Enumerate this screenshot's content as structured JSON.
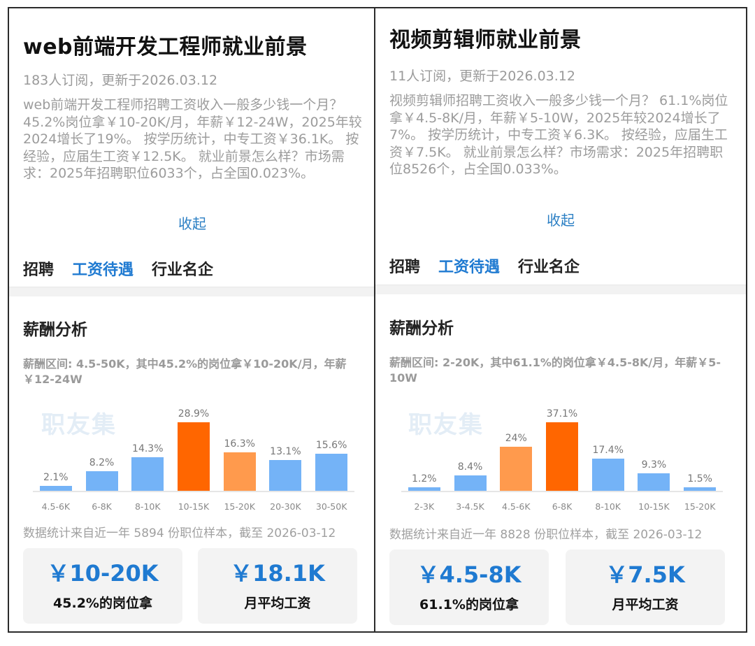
{
  "panels": [
    {
      "title": "web前端开发工程师就业前景",
      "meta": "183人订阅，更新于2026.03.12",
      "description": "web前端开发工程师招聘工资收入一般多少钱一个月？ 45.2%岗位拿￥10-20K/月，年薪￥12-24W，2025年较2024增长了19%。 按学历统计，中专工资￥36.1K。 按经验，应届生工资￥12.5K。 就业前景怎么样？市场需求：2025年招聘职位6033个，占全国0.023%。",
      "collapse_label": "收起",
      "tabs": [
        {
          "label": "招聘",
          "active": false
        },
        {
          "label": "工资待遇",
          "active": true
        },
        {
          "label": "行业名企",
          "active": false
        }
      ],
      "section_title": "薪酬分析",
      "range_text": "薪酬区间: 4.5-50K，其中45.2%的岗位拿￥10-20K/月，年薪￥12-24W",
      "watermark": "职友集",
      "note": "数据统计来自近一年 5894 份职位样本，截至 2026-03-12",
      "cards": [
        {
          "value": "￥10-20K",
          "label": "45.2%的岗位拿"
        },
        {
          "value": "￥18.1K",
          "label": "月平均工资"
        }
      ]
    },
    {
      "title": "视频剪辑师就业前景",
      "meta": "11人订阅，更新于2026.03.12",
      "description": "视频剪辑师招聘工资收入一般多少钱一个月？ 61.1%岗位拿￥4.5-8K/月，年薪￥5-10W，2025年较2024增长了7%。 按学历统计，中专工资￥6.3K。 按经验，应届生工资￥7.5K。 就业前景怎么样？市场需求：2025年招聘职位8526个，占全国0.033%。",
      "collapse_label": "收起",
      "tabs": [
        {
          "label": "招聘",
          "active": false
        },
        {
          "label": "工资待遇",
          "active": true
        },
        {
          "label": "行业名企",
          "active": false
        }
      ],
      "section_title": "薪酬分析",
      "range_text": "薪酬区间: 2-20K，其中61.1%的岗位拿￥4.5-8K/月，年薪￥5-10W",
      "watermark": "职友集",
      "note": "数据统计来自近一年 8828 份职位样本，截至 2026-03-12",
      "cards": [
        {
          "value": "￥4.5-8K",
          "label": "61.1%的岗位拿"
        },
        {
          "value": "￥7.5K",
          "label": "月平均工资"
        }
      ]
    }
  ],
  "colors": {
    "accent_blue": "#1f7ad1",
    "bar_blue": "#74b3f7",
    "bar_top": "#ff6600",
    "bar_second": "#ff9a4d"
  },
  "chart_data": [
    {
      "type": "bar",
      "title": "web前端开发工程师 薪酬分布",
      "categories": [
        "4.5-6K",
        "6-8K",
        "8-10K",
        "10-15K",
        "15-20K",
        "20-30K",
        "30-50K"
      ],
      "values": [
        2.1,
        8.2,
        14.3,
        28.9,
        16.3,
        13.1,
        15.6
      ],
      "labels": [
        "2.1%",
        "8.2%",
        "14.3%",
        "28.9%",
        "16.3%",
        "13.1%",
        "15.6%"
      ],
      "highlight": [
        "",
        "",
        "",
        "hi",
        "mid",
        "",
        ""
      ],
      "xlabel": "",
      "ylabel": "",
      "grid": false,
      "unit": "%"
    },
    {
      "type": "bar",
      "title": "视频剪辑师 薪酬分布",
      "categories": [
        "2-3K",
        "3-4.5K",
        "4.5-6K",
        "6-8K",
        "8-10K",
        "10-15K",
        "15-20K"
      ],
      "values": [
        1.2,
        8.4,
        24,
        37.1,
        17.4,
        9.3,
        1.5
      ],
      "labels": [
        "1.2%",
        "8.4%",
        "24%",
        "37.1%",
        "17.4%",
        "9.3%",
        "1.5%"
      ],
      "highlight": [
        "",
        "",
        "mid",
        "hi",
        "",
        "",
        ""
      ],
      "xlabel": "",
      "ylabel": "",
      "grid": false,
      "unit": "%"
    }
  ]
}
